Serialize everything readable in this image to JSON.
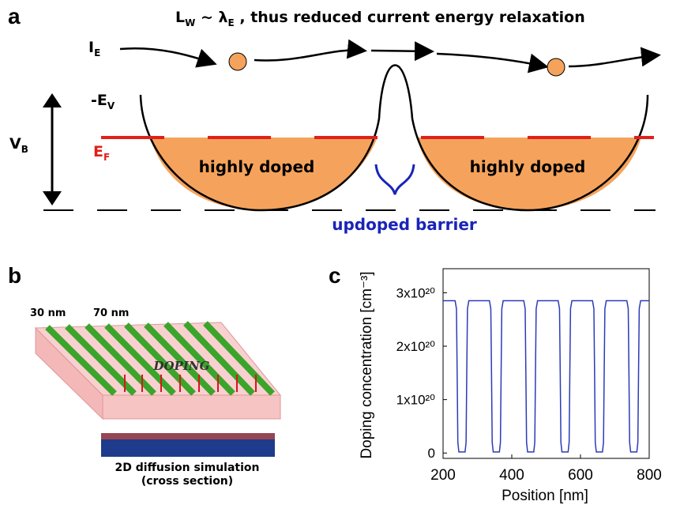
{
  "panel_labels": [
    "a",
    "b",
    "c"
  ],
  "panel_a": {
    "title_parts": [
      "L",
      "W",
      " ~ λ",
      "E",
      " , thus reduced current energy relaxation"
    ],
    "current": [
      "I",
      "E"
    ],
    "valence": [
      "-E",
      "V"
    ],
    "bias": [
      "V",
      "B"
    ],
    "fermi": [
      "E",
      "F"
    ],
    "well_labels": [
      "highly doped",
      "highly doped"
    ],
    "barrier_label": "updoped barrier"
  },
  "panel_b": {
    "widths": [
      "30 nm",
      "70 nm"
    ],
    "doping": "DOPING",
    "caption": [
      "2D diffusion simulation",
      "(cross section)"
    ]
  },
  "chart_data": {
    "type": "line",
    "xlabel": "Position [nm]",
    "ylabel": "Doping concentration [cm⁻³]",
    "color": "#2b3bb8",
    "xlim": [
      200,
      800
    ],
    "xticks": [
      200,
      400,
      600,
      800
    ],
    "ylim": [
      -1e+19,
      3.45e+20
    ],
    "yticks": [
      0,
      {
        "value": 1e+20,
        "label": "1x10²⁰"
      },
      {
        "value": 2e+20,
        "label": "2x10²⁰"
      },
      {
        "value": 3e+20,
        "label": "3x10²⁰"
      }
    ],
    "x": [
      200,
      235,
      239,
      241,
      243,
      246,
      264,
      267,
      269,
      271,
      275,
      335,
      339,
      341,
      343,
      346,
      364,
      367,
      369,
      371,
      375,
      435,
      439,
      441,
      443,
      446,
      464,
      467,
      469,
      471,
      475,
      535,
      539,
      541,
      543,
      546,
      564,
      567,
      569,
      571,
      575,
      635,
      639,
      641,
      643,
      646,
      664,
      667,
      669,
      671,
      675,
      735,
      739,
      741,
      743,
      746,
      764,
      767,
      769,
      771,
      775,
      800
    ],
    "values": [
      2.85e+20,
      2.85e+20,
      2.7e+20,
      1.5e+20,
      2e+19,
      2e+18,
      2e+18,
      2e+19,
      1.5e+20,
      2.7e+20,
      2.85e+20,
      2.85e+20,
      2.7e+20,
      1.5e+20,
      2e+19,
      2e+18,
      2e+18,
      2e+19,
      1.5e+20,
      2.7e+20,
      2.85e+20,
      2.85e+20,
      2.7e+20,
      1.5e+20,
      2e+19,
      2e+18,
      2e+18,
      2e+19,
      1.5e+20,
      2.7e+20,
      2.85e+20,
      2.85e+20,
      2.7e+20,
      1.5e+20,
      2e+19,
      2e+18,
      2e+18,
      2e+19,
      1.5e+20,
      2.7e+20,
      2.85e+20,
      2.85e+20,
      2.7e+20,
      1.5e+20,
      2e+19,
      2e+18,
      2e+18,
      2e+19,
      1.5e+20,
      2.7e+20,
      2.85e+20,
      2.85e+20,
      2.7e+20,
      1.5e+20,
      2e+19,
      2e+18,
      2e+18,
      2e+19,
      1.5e+20,
      2.7e+20,
      2.85e+20,
      2.85e+20
    ]
  }
}
